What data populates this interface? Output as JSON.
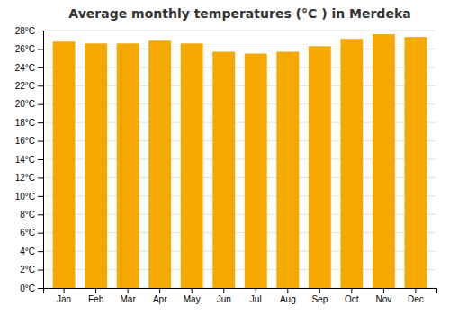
{
  "chart_data": {
    "type": "bar",
    "title": "Average monthly temperatures (°C ) in Merdeka",
    "categories": [
      "Jan",
      "Feb",
      "Mar",
      "Apr",
      "May",
      "Jun",
      "Jul",
      "Aug",
      "Sep",
      "Oct",
      "Nov",
      "Dec"
    ],
    "values": [
      26.8,
      26.6,
      26.6,
      26.9,
      26.6,
      25.7,
      25.5,
      25.7,
      26.3,
      27.1,
      27.6,
      27.3
    ],
    "color": "#F5A800",
    "ylim": [
      0,
      28
    ],
    "yticks": [
      {
        "value": 0,
        "label": "0°C"
      },
      {
        "value": 2,
        "label": "2°C"
      },
      {
        "value": 4,
        "label": "4°C"
      },
      {
        "value": 6,
        "label": "6°C"
      },
      {
        "value": 8,
        "label": "8°C"
      },
      {
        "value": 10,
        "label": "10°C"
      },
      {
        "value": 12,
        "label": "12°C"
      },
      {
        "value": 14,
        "label": "14°C"
      },
      {
        "value": 16,
        "label": "16°C"
      },
      {
        "value": 18,
        "label": "18°C"
      },
      {
        "value": 20,
        "label": "20°C"
      },
      {
        "value": 22,
        "label": "22°C"
      },
      {
        "value": 24,
        "label": "24°C"
      },
      {
        "value": 26,
        "label": "26°C"
      },
      {
        "value": 28,
        "label": "28°C"
      }
    ],
    "grid": true
  }
}
